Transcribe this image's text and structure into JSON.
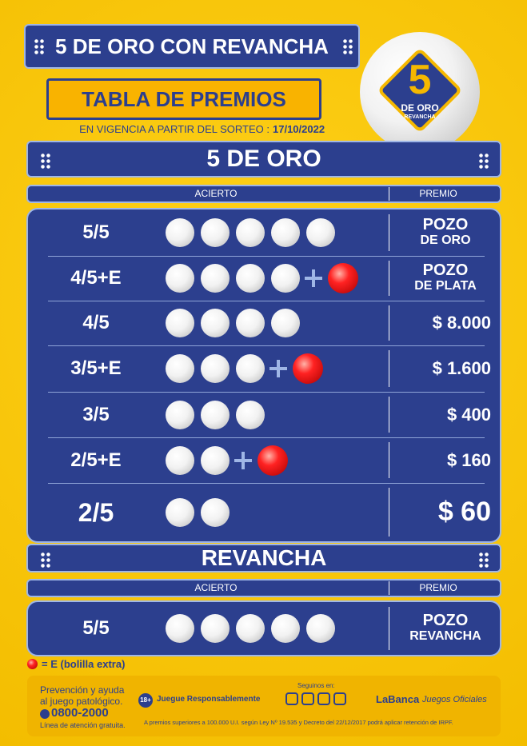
{
  "header": {
    "title": "5 DE ORO CON REVANCHA",
    "subtitle": "TABLA DE PREMIOS",
    "validity_label": "EN VIGENCIA A PARTIR DEL SORTEO :",
    "validity_date": "17/10/2022"
  },
  "logo": {
    "number": "5",
    "name": "DE ORO",
    "tag": "REVANCHA"
  },
  "sections": [
    {
      "title": "5 DE ORO",
      "hit_header": "ACIERTO",
      "prize_header": "PREMIO",
      "rows": [
        {
          "hit": "5/5",
          "white_balls": 5,
          "extra_ball": false,
          "prize": [
            "POZO",
            "DE ORO"
          ]
        },
        {
          "hit": "4/5+E",
          "white_balls": 4,
          "extra_ball": true,
          "prize": [
            "POZO",
            "DE PLATA"
          ]
        },
        {
          "hit": "4/5",
          "white_balls": 4,
          "extra_ball": false,
          "prize": [
            "$ 8.000"
          ]
        },
        {
          "hit": "3/5+E",
          "white_balls": 3,
          "extra_ball": true,
          "prize": [
            "$ 1.600"
          ]
        },
        {
          "hit": "3/5",
          "white_balls": 3,
          "extra_ball": false,
          "prize": [
            "$ 400"
          ]
        },
        {
          "hit": "2/5+E",
          "white_balls": 2,
          "extra_ball": true,
          "prize": [
            "$ 160"
          ]
        },
        {
          "hit": "2/5",
          "white_balls": 2,
          "extra_ball": false,
          "prize": [
            "$ 60"
          ]
        }
      ]
    },
    {
      "title": "REVANCHA",
      "hit_header": "ACIERTO",
      "prize_header": "PREMIO",
      "rows": [
        {
          "hit": "5/5",
          "white_balls": 5,
          "extra_ball": false,
          "prize": [
            "POZO",
            "REVANCHA"
          ]
        }
      ]
    }
  ],
  "legend": "= E (bolilla extra)",
  "footer": {
    "help": [
      "Prevención y ayuda",
      "al juego patológico."
    ],
    "phone": "0800-2000",
    "phone_note": "Línea de atención gratuita.",
    "age": "18+",
    "responsible": "Juegue Responsablemente",
    "follow": "Seguinos en:",
    "brand": "LaBanca",
    "brand_sub": "Juegos Oficiales",
    "disclaimer": "A premios superiores a 100.000 U.I. según Ley Nº 19.535 y Decreto del 22/12/2017 podrá aplicar retención de IRPF."
  }
}
